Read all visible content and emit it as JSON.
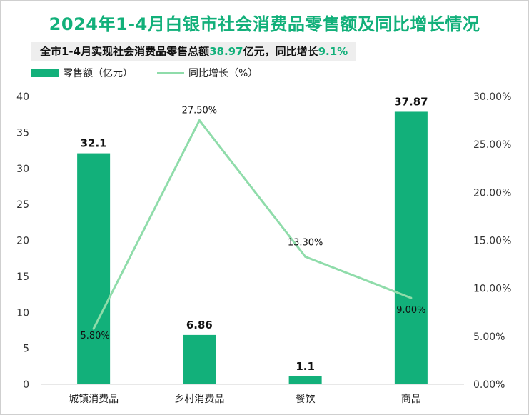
{
  "title": "2024年1-4月白银市社会消费品零售额及同比增长情况",
  "subtitle": {
    "prefix": "全市1-4月实现社会消费品零售总额",
    "total": "38.97",
    "middle": "亿元，同比增长",
    "growth": "9.1%"
  },
  "legend": {
    "bar_label": "零售额（亿元）",
    "line_label": "同比增长（%）"
  },
  "colors": {
    "bar": "#12b07a",
    "line": "#8fdcaa",
    "title": "#12b07a"
  },
  "chart_data": {
    "type": "bar",
    "categories": [
      "城镇消费品",
      "乡村消费品",
      "餐饮",
      "商品"
    ],
    "series": [
      {
        "name": "零售额（亿元）",
        "type": "bar",
        "axis": "left",
        "values": [
          32.1,
          6.86,
          1.1,
          37.87
        ],
        "labels": [
          "32.1",
          "6.86",
          "1.1",
          "37.87"
        ]
      },
      {
        "name": "同比增长（%）",
        "type": "line",
        "axis": "right",
        "values": [
          5.8,
          27.5,
          13.3,
          9.0
        ],
        "labels": [
          "5.80%",
          "27.50%",
          "13.30%",
          "9.00%"
        ]
      }
    ],
    "y_left": {
      "min": 0,
      "max": 40,
      "ticks": [
        "0",
        "5",
        "10",
        "15",
        "20",
        "25",
        "30",
        "35",
        "40"
      ]
    },
    "y_right": {
      "min": 0,
      "max": 30,
      "ticks": [
        "0.00%",
        "5.00%",
        "10.00%",
        "15.00%",
        "20.00%",
        "25.00%",
        "30.00%"
      ]
    },
    "grid": false,
    "legend_position": "top-left"
  }
}
